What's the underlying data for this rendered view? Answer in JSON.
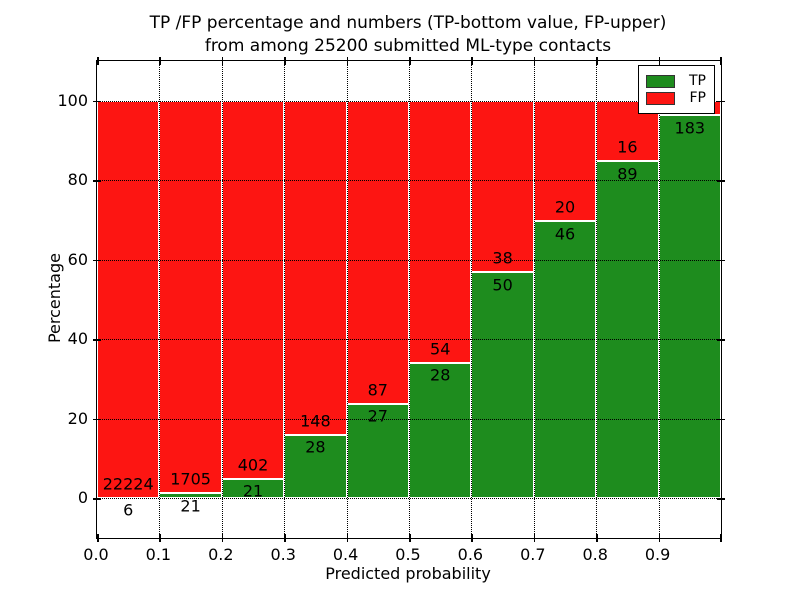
{
  "title": {
    "line1": "TP /FP percentage and numbers (TP-bottom value, FP-upper)",
    "line2": "from among 25200 submitted ML-type contacts"
  },
  "axes": {
    "xlabel": "Predicted probability",
    "ylabel": "Percentage",
    "x_tick_labels": [
      "0.0",
      "0.1",
      "0.2",
      "0.3",
      "0.4",
      "0.5",
      "0.6",
      "0.7",
      "0.8",
      "0.9"
    ],
    "y_tick_labels": [
      "0",
      "20",
      "40",
      "60",
      "80",
      "100"
    ],
    "y_tick_values": [
      0,
      20,
      40,
      60,
      80,
      100
    ],
    "x_range": [
      0.0,
      1.0
    ],
    "y_display_range": [
      -10,
      110
    ],
    "grid": "dotted"
  },
  "legend": {
    "items": [
      {
        "label": "TP",
        "color_key": "tp"
      },
      {
        "label": "FP",
        "color_key": "fp"
      }
    ],
    "position": "upper right"
  },
  "colors": {
    "tp": "#1e8c1e",
    "fp": "#fd1512",
    "bar_edge": "#ffffff",
    "grid": "#000000"
  },
  "chart_data": {
    "type": "bar",
    "stacked": true,
    "normalized_to": 100,
    "total_contacts": 25200,
    "title": "TP /FP percentage and numbers (TP-bottom value, FP-upper) from among 25200 submitted ML-type contacts",
    "xlabel": "Predicted probability",
    "ylabel": "Percentage",
    "categories": [
      "0.0-0.1",
      "0.1-0.2",
      "0.2-0.3",
      "0.3-0.4",
      "0.4-0.5",
      "0.5-0.6",
      "0.6-0.7",
      "0.7-0.8",
      "0.8-0.9",
      "0.9-1.0"
    ],
    "series": [
      {
        "name": "TP",
        "values": [
          6,
          21,
          21,
          28,
          27,
          28,
          50,
          46,
          89,
          183
        ]
      },
      {
        "name": "FP",
        "values": [
          22224,
          1705,
          402,
          148,
          87,
          54,
          38,
          20,
          16,
          null
        ]
      }
    ],
    "tp_percent": [
      0.03,
      1.22,
      4.96,
      15.91,
      23.68,
      34.15,
      56.82,
      69.7,
      84.76,
      96.3
    ]
  }
}
